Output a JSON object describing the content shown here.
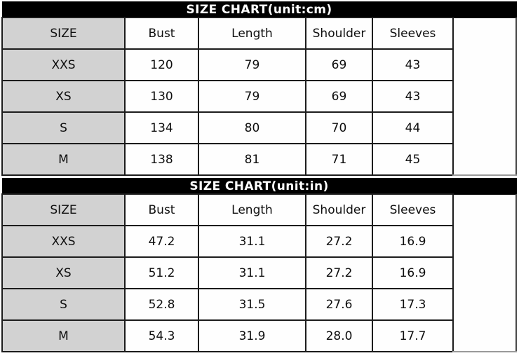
{
  "page": {
    "background": "#ffffff"
  },
  "colors": {
    "title_bar_bg": "#000000",
    "title_bar_text": "#ffffff",
    "size_column_bg": "#d2d2d2",
    "cell_bg": "#fefefe",
    "grid_border": "#1c1c1c",
    "text": "#0e0e0e"
  },
  "chart_data": [
    {
      "type": "table",
      "title": "SIZE CHART(unit:cm)",
      "unit": "cm",
      "columns": [
        "SIZE",
        "Bust",
        "Length",
        "Shoulder",
        "Sleeves"
      ],
      "rows": [
        [
          "XXS",
          "120",
          "79",
          "69",
          "43"
        ],
        [
          "XS",
          "130",
          "79",
          "69",
          "43"
        ],
        [
          "S",
          "134",
          "80",
          "70",
          "44"
        ],
        [
          "M",
          "138",
          "81",
          "71",
          "45"
        ]
      ]
    },
    {
      "type": "table",
      "title": "SIZE CHART(unit:in)",
      "unit": "in",
      "columns": [
        "SIZE",
        "Bust",
        "Length",
        "Shoulder",
        "Sleeves"
      ],
      "rows": [
        [
          "XXS",
          "47.2",
          "31.1",
          "27.2",
          "16.9"
        ],
        [
          "XS",
          "51.2",
          "31.1",
          "27.2",
          "16.9"
        ],
        [
          "S",
          "52.8",
          "31.5",
          "27.6",
          "17.3"
        ],
        [
          "M",
          "54.3",
          "31.9",
          "28.0",
          "17.7"
        ]
      ]
    }
  ]
}
